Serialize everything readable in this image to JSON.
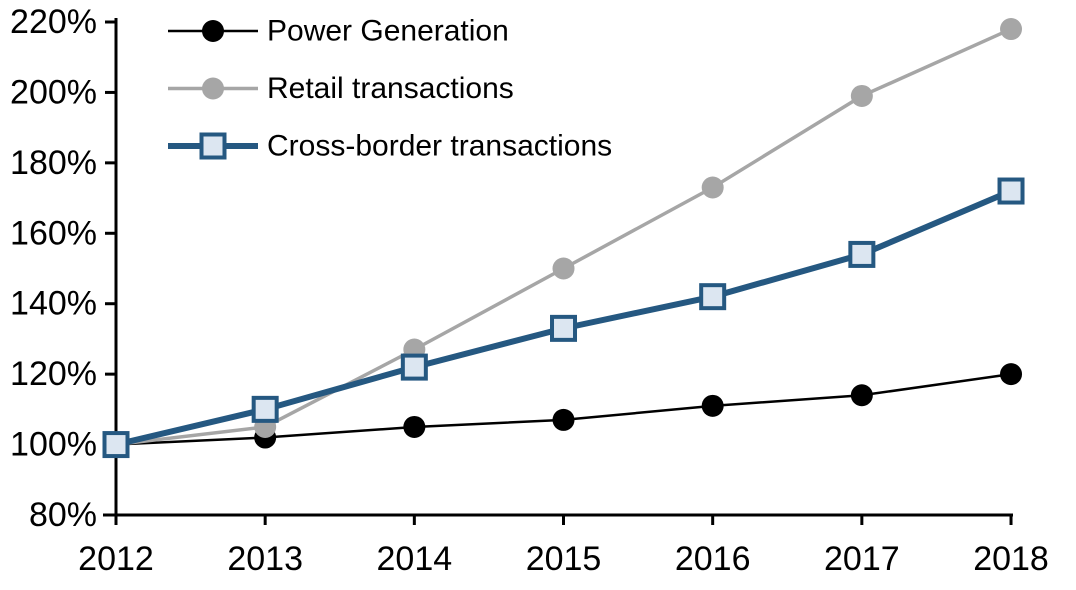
{
  "chart_data": {
    "type": "line",
    "title": "",
    "xlabel": "",
    "ylabel": "",
    "x": [
      2012,
      2013,
      2014,
      2015,
      2016,
      2017,
      2018
    ],
    "xtick_labels": [
      "2012",
      "2013",
      "2014",
      "2015",
      "2016",
      "2017",
      "2018"
    ],
    "ylim": [
      80,
      220
    ],
    "ytick_step": 20,
    "ytick_labels": [
      "80%",
      "100%",
      "120%",
      "140%",
      "160%",
      "180%",
      "200%",
      "220%"
    ],
    "grid": false,
    "legend_position": "top-left",
    "axis_color": "#000000",
    "background_color": "#ffffff",
    "series": [
      {
        "name": "Power Generation",
        "values": [
          100,
          102,
          105,
          107,
          111,
          114,
          120
        ],
        "color": "#000000",
        "line_width": 2.5,
        "marker": "circle",
        "marker_fill": "#000000"
      },
      {
        "name": "Retail transactions",
        "values": [
          100,
          105,
          127,
          150,
          173,
          199,
          218
        ],
        "color": "#a6a6a6",
        "line_width": 3.5,
        "marker": "circle",
        "marker_fill": "#a6a6a6"
      },
      {
        "name": "Cross-border transactions",
        "values": [
          100,
          110,
          122,
          133,
          142,
          154,
          172
        ],
        "color": "#255881",
        "line_width": 6,
        "marker": "square",
        "marker_fill": "#dce6f1"
      }
    ]
  }
}
